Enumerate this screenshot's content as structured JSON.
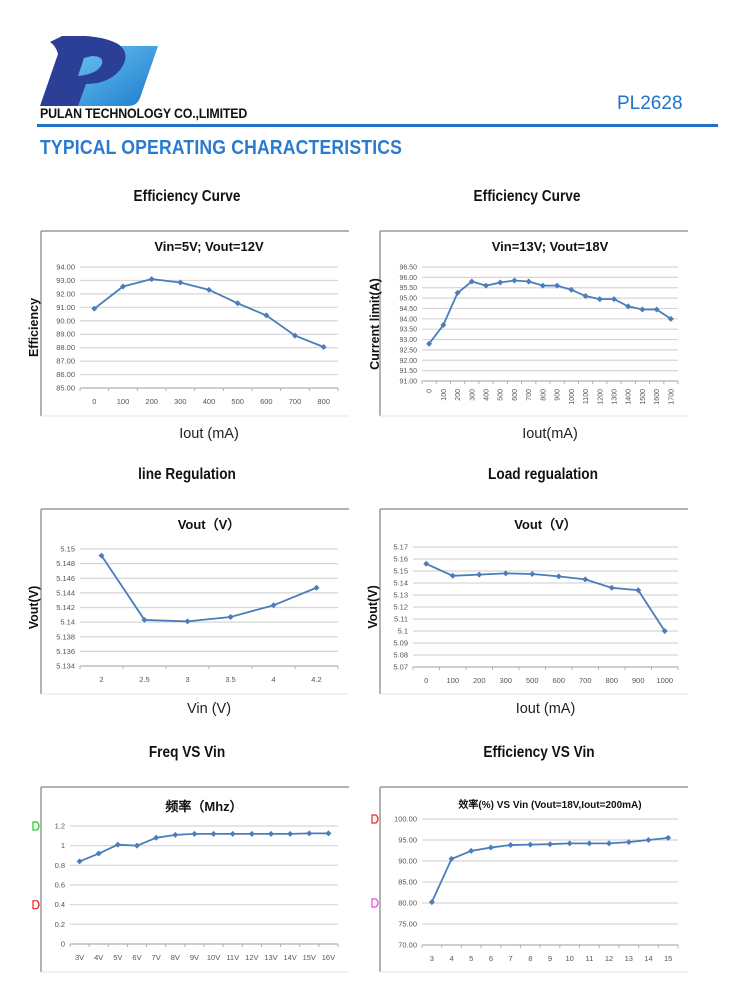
{
  "header": {
    "company": "PULAN TECHNOLOGY CO.,LIMITED",
    "part_number": "PL2628",
    "section_title": "TYPICAL OPERATING CHARACTERISTICS",
    "brand_color": "#1e73c8"
  },
  "chart_data": [
    {
      "id": "eff1",
      "type": "line",
      "heading": "Efficiency Curve",
      "title": "Vin=5V; Vout=12V",
      "xlabel": "Iout (mA)",
      "ylabel": "Efficiency",
      "categories": [
        "0",
        "100",
        "200",
        "300",
        "400",
        "500",
        "600",
        "700",
        "800"
      ],
      "ylim": [
        85,
        94
      ],
      "ystep": 1,
      "ytick_labels": [
        "85.00",
        "86.00",
        "87.00",
        "88.00",
        "89.00",
        "90.00",
        "91.00",
        "92.00",
        "93.00",
        "94.00"
      ],
      "x_label_rotated": false,
      "grid": true,
      "series": [
        {
          "name": "Efficiency",
          "values": [
            90.9,
            92.55,
            93.1,
            92.85,
            92.3,
            91.3,
            90.4,
            88.9,
            88.05
          ]
        }
      ]
    },
    {
      "id": "eff2",
      "type": "line",
      "heading": "Efficiency Curve",
      "title": "Vin=13V; Vout=18V",
      "xlabel": "Iout(mA)",
      "ylabel": "Current limit(A)",
      "categories": [
        "0",
        "100",
        "200",
        "300",
        "400",
        "500",
        "600",
        "700",
        "800",
        "900",
        "1000",
        "1100",
        "1200",
        "1300",
        "1400",
        "1500",
        "1600",
        "1700"
      ],
      "ylim": [
        91,
        96.5
      ],
      "ystep": 0.5,
      "ytick_labels": [
        "91.00",
        "91.50",
        "92.00",
        "92.50",
        "93.00",
        "93.50",
        "94.00",
        "94.50",
        "95.00",
        "95.50",
        "96.00",
        "96.50"
      ],
      "x_label_rotated": true,
      "grid": true,
      "series": [
        {
          "name": "Efficiency",
          "values": [
            92.8,
            93.7,
            95.25,
            95.8,
            95.6,
            95.75,
            95.85,
            95.8,
            95.6,
            95.6,
            95.4,
            95.1,
            94.95,
            94.95,
            94.6,
            94.45,
            94.45,
            94.0
          ]
        }
      ]
    },
    {
      "id": "linereg",
      "type": "line",
      "heading": "line Regulation",
      "title": "Vout（V）",
      "xlabel": "Vin (V)",
      "ylabel": "Vout(V)",
      "categories": [
        "2",
        "2.5",
        "3",
        "3.5",
        "4",
        "4.2"
      ],
      "ylim": [
        5.134,
        5.15
      ],
      "ystep": 0.002,
      "ytick_labels": [
        "5.134",
        "5.136",
        "5.138",
        "5.14",
        "5.142",
        "5.144",
        "5.146",
        "5.148",
        "5.15"
      ],
      "x_label_rotated": false,
      "grid": true,
      "series": [
        {
          "name": "Vout",
          "values": [
            5.1491,
            5.1403,
            5.1401,
            5.1407,
            5.1423,
            5.1447
          ]
        }
      ]
    },
    {
      "id": "loadreg",
      "type": "line",
      "heading": "Load regualation",
      "title": "Vout（V）",
      "xlabel": "Iout (mA)",
      "ylabel": "Vout(V)",
      "categories": [
        "0",
        "100",
        "200",
        "300",
        "500",
        "600",
        "700",
        "800",
        "900",
        "1000"
      ],
      "ylim": [
        5.07,
        5.17
      ],
      "ystep": 0.01,
      "ytick_labels": [
        "5.07",
        "5.08",
        "5.09",
        "5.1",
        "5.11",
        "5.12",
        "5.13",
        "5.14",
        "5.15",
        "5.16",
        "5.17"
      ],
      "x_label_rotated": false,
      "grid": true,
      "series": [
        {
          "name": "Vout",
          "values": [
            5.156,
            5.146,
            5.147,
            5.148,
            5.1475,
            5.1455,
            5.143,
            5.136,
            5.134,
            5.1
          ]
        }
      ]
    },
    {
      "id": "freq",
      "type": "line",
      "heading": "Freq VS Vin",
      "title": "频率（Mhz）",
      "xlabel": "",
      "ylabel": "",
      "categories": [
        "3V",
        "4V",
        "5V",
        "6V",
        "7V",
        "8V",
        "9V",
        "10V",
        "11V",
        "12V",
        "13V",
        "14V",
        "15V",
        "16V"
      ],
      "ylim": [
        0,
        1.2
      ],
      "ystep": 0.2,
      "ytick_labels": [
        "0",
        "0.2",
        "0.4",
        "0.6",
        "0.8",
        "1",
        "1.2"
      ],
      "x_label_rotated": false,
      "grid": true,
      "markers_side": [
        {
          "color": "#22cc22",
          "at": 1.2
        },
        {
          "color": "#ee2222",
          "at": 0.4
        }
      ],
      "series": [
        {
          "name": "Freq",
          "values": [
            0.84,
            0.92,
            1.01,
            1.0,
            1.08,
            1.11,
            1.12,
            1.12,
            1.12,
            1.12,
            1.12,
            1.12,
            1.125,
            1.125
          ]
        }
      ]
    },
    {
      "id": "effvin",
      "type": "line",
      "heading": "Efficiency VS Vin",
      "title": "效率(%) VS  Vin (Vout=18V,Iout=200mA)",
      "xlabel": "",
      "ylabel": "",
      "categories": [
        "3",
        "4",
        "5",
        "6",
        "7",
        "8",
        "9",
        "10",
        "11",
        "12",
        "13",
        "14",
        "15"
      ],
      "ylim": [
        70,
        100
      ],
      "ystep": 5,
      "ytick_labels": [
        "70.00",
        "75.00",
        "80.00",
        "85.00",
        "90.00",
        "95.00",
        "100.00"
      ],
      "x_label_rotated": false,
      "grid": true,
      "markers_side": [
        {
          "color": "#ee2222",
          "at": 100
        },
        {
          "color": "#ee44ee",
          "at": 80
        }
      ],
      "series": [
        {
          "name": "Efficiency",
          "values": [
            80.2,
            90.5,
            92.4,
            93.2,
            93.8,
            93.9,
            94.0,
            94.2,
            94.2,
            94.2,
            94.5,
            95.0,
            95.5
          ]
        }
      ]
    }
  ]
}
